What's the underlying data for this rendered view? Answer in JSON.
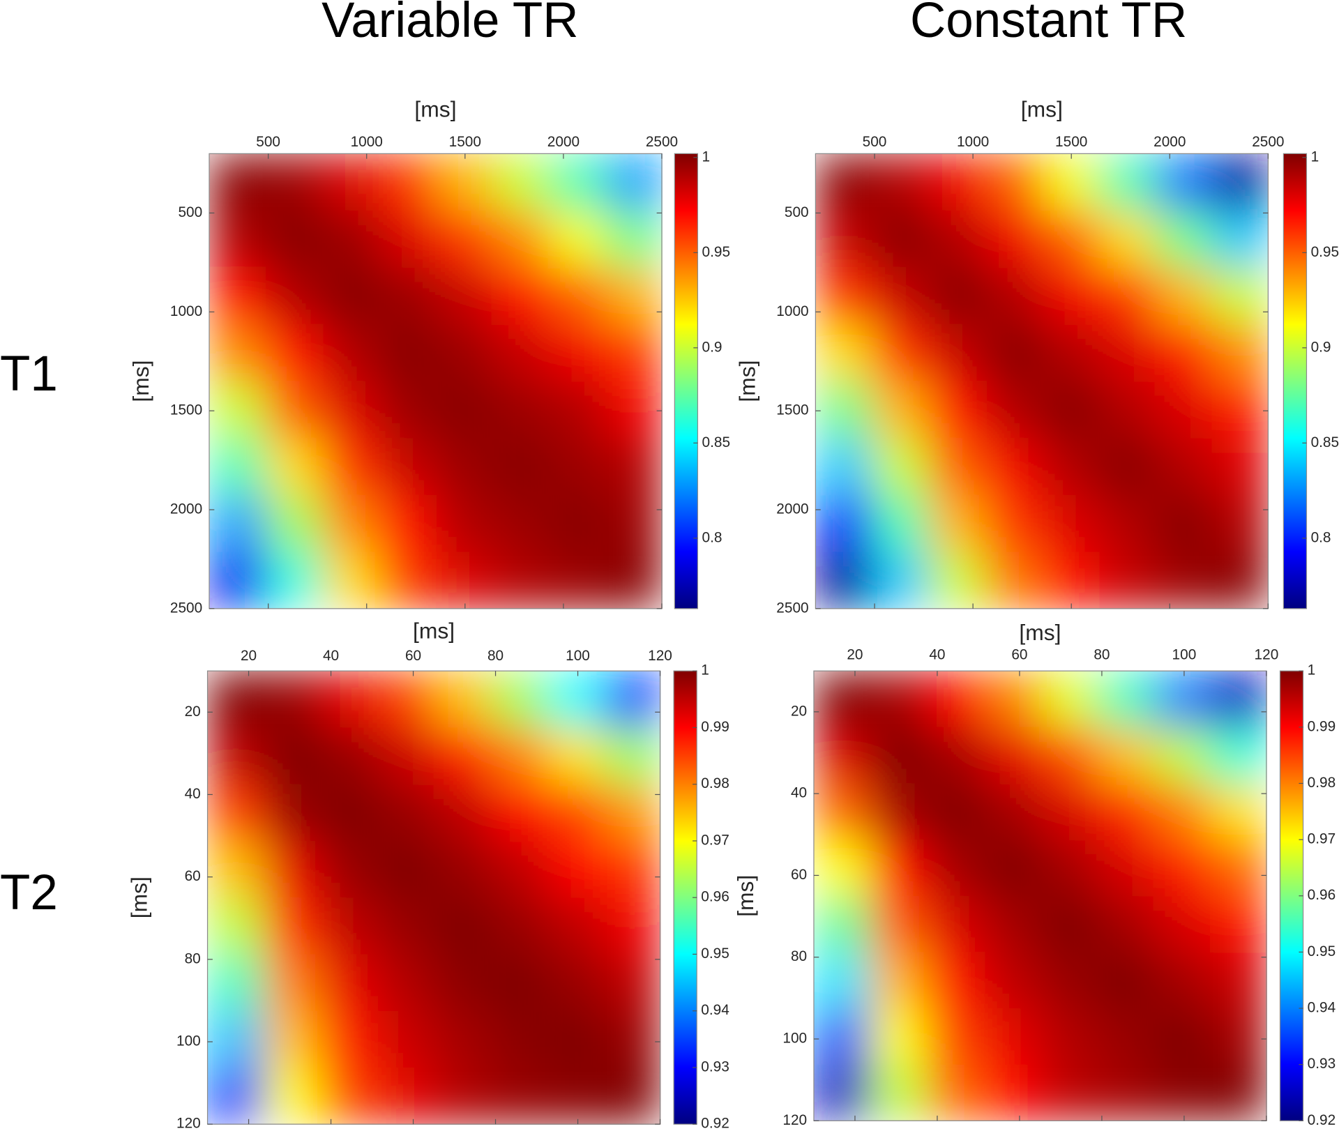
{
  "column_titles": [
    "Variable TR",
    "Constant TR"
  ],
  "row_labels": [
    "T1",
    "T2"
  ],
  "chart_data": [
    {
      "type": "heatmap",
      "xlabel": "[ms]",
      "ylabel": "[ms]",
      "xlim": [
        200,
        2500
      ],
      "ylim": [
        200,
        2500
      ],
      "xticks": [
        500,
        1000,
        1500,
        2000,
        2500
      ],
      "yticks": [
        500,
        1000,
        1500,
        2000,
        2500
      ],
      "colormap": "jet",
      "clim": [
        0.763,
        1.002
      ],
      "cticks": [
        0.8,
        0.85,
        0.9,
        0.95,
        1
      ],
      "z": [
        [
          1,
          0.995,
          0.98,
          0.96,
          0.93,
          0.9,
          0.87,
          0.83
        ],
        [
          0.99,
          1,
          0.995,
          0.98,
          0.96,
          0.94,
          0.91,
          0.88
        ],
        [
          0.97,
          0.99,
          1,
          0.995,
          0.985,
          0.97,
          0.95,
          0.93
        ],
        [
          0.94,
          0.97,
          0.99,
          1,
          0.995,
          0.985,
          0.975,
          0.96
        ],
        [
          0.9,
          0.95,
          0.98,
          0.995,
          1,
          0.995,
          0.99,
          0.975
        ],
        [
          0.87,
          0.92,
          0.96,
          0.985,
          0.995,
          1,
          0.995,
          0.99
        ],
        [
          0.83,
          0.89,
          0.94,
          0.97,
          0.99,
          0.995,
          1,
          0.995
        ],
        [
          0.79,
          0.86,
          0.92,
          0.96,
          0.98,
          0.99,
          0.995,
          1
        ]
      ]
    },
    {
      "type": "heatmap",
      "xlabel": "[ms]",
      "ylabel": "[ms]",
      "xlim": [
        200,
        2500
      ],
      "ylim": [
        200,
        2500
      ],
      "xticks": [
        500,
        1000,
        1500,
        2000,
        2500
      ],
      "yticks": [
        500,
        1000,
        1500,
        2000,
        2500
      ],
      "colormap": "jet",
      "clim": [
        0.763,
        1.002
      ],
      "cticks": [
        0.8,
        0.85,
        0.9,
        0.95,
        1
      ],
      "z": [
        [
          1,
          0.99,
          0.975,
          0.95,
          0.91,
          0.87,
          0.82,
          0.77
        ],
        [
          0.985,
          1,
          0.99,
          0.975,
          0.95,
          0.92,
          0.88,
          0.84
        ],
        [
          0.96,
          0.985,
          1,
          0.99,
          0.975,
          0.96,
          0.93,
          0.9
        ],
        [
          0.92,
          0.96,
          0.985,
          1,
          0.99,
          0.98,
          0.965,
          0.94
        ],
        [
          0.88,
          0.93,
          0.97,
          0.99,
          1,
          0.99,
          0.98,
          0.965
        ],
        [
          0.84,
          0.9,
          0.95,
          0.975,
          0.99,
          1,
          0.99,
          0.98
        ],
        [
          0.8,
          0.87,
          0.93,
          0.96,
          0.98,
          0.99,
          1,
          0.99
        ],
        [
          0.77,
          0.84,
          0.9,
          0.945,
          0.97,
          0.985,
          0.995,
          1
        ]
      ]
    },
    {
      "type": "heatmap",
      "xlabel": "[ms]",
      "ylabel": "[ms]",
      "xlim": [
        10,
        120
      ],
      "ylim": [
        10,
        120
      ],
      "xticks": [
        20,
        40,
        60,
        80,
        100,
        120
      ],
      "yticks": [
        20,
        40,
        60,
        80,
        100,
        120
      ],
      "colormap": "jet",
      "clim": [
        0.92,
        1
      ],
      "cticks": [
        0.92,
        0.93,
        0.94,
        0.95,
        0.96,
        0.97,
        0.98,
        0.99,
        1
      ],
      "z": [
        [
          1,
          0.998,
          0.992,
          0.985,
          0.975,
          0.963,
          0.95,
          0.935
        ],
        [
          0.995,
          1,
          0.998,
          0.994,
          0.988,
          0.98,
          0.972,
          0.962
        ],
        [
          0.985,
          0.998,
          1,
          0.998,
          0.995,
          0.99,
          0.985,
          0.978
        ],
        [
          0.975,
          0.992,
          0.998,
          1,
          0.998,
          0.995,
          0.99,
          0.986
        ],
        [
          0.965,
          0.986,
          0.995,
          0.998,
          1,
          0.998,
          0.995,
          0.991
        ],
        [
          0.955,
          0.98,
          0.992,
          0.996,
          0.999,
          1,
          0.998,
          0.995
        ],
        [
          0.945,
          0.975,
          0.988,
          0.994,
          0.997,
          0.999,
          1,
          0.998
        ],
        [
          0.935,
          0.97,
          0.985,
          0.992,
          0.996,
          0.998,
          0.999,
          1
        ]
      ]
    },
    {
      "type": "heatmap",
      "xlabel": "[ms]",
      "ylabel": "[ms]",
      "xlim": [
        10,
        120
      ],
      "ylim": [
        10,
        120
      ],
      "xticks": [
        20,
        40,
        60,
        80,
        100,
        120
      ],
      "yticks": [
        20,
        40,
        60,
        80,
        100,
        120
      ],
      "colormap": "jet",
      "clim": [
        0.92,
        1
      ],
      "cticks": [
        0.92,
        0.93,
        0.94,
        0.95,
        0.96,
        0.97,
        0.98,
        0.99,
        1
      ],
      "z": [
        [
          1,
          0.997,
          0.99,
          0.98,
          0.968,
          0.955,
          0.94,
          0.925
        ],
        [
          0.993,
          1,
          0.997,
          0.992,
          0.984,
          0.975,
          0.965,
          0.953
        ],
        [
          0.982,
          0.997,
          1,
          0.997,
          0.993,
          0.987,
          0.98,
          0.972
        ],
        [
          0.97,
          0.99,
          0.997,
          1,
          0.997,
          0.993,
          0.988,
          0.982
        ],
        [
          0.958,
          0.983,
          0.993,
          0.997,
          1,
          0.997,
          0.993,
          0.989
        ],
        [
          0.948,
          0.976,
          0.989,
          0.995,
          0.998,
          1,
          0.997,
          0.994
        ],
        [
          0.937,
          0.97,
          0.985,
          0.992,
          0.996,
          0.998,
          1,
          0.997
        ],
        [
          0.925,
          0.965,
          0.982,
          0.99,
          0.995,
          0.997,
          0.999,
          1
        ]
      ]
    }
  ]
}
